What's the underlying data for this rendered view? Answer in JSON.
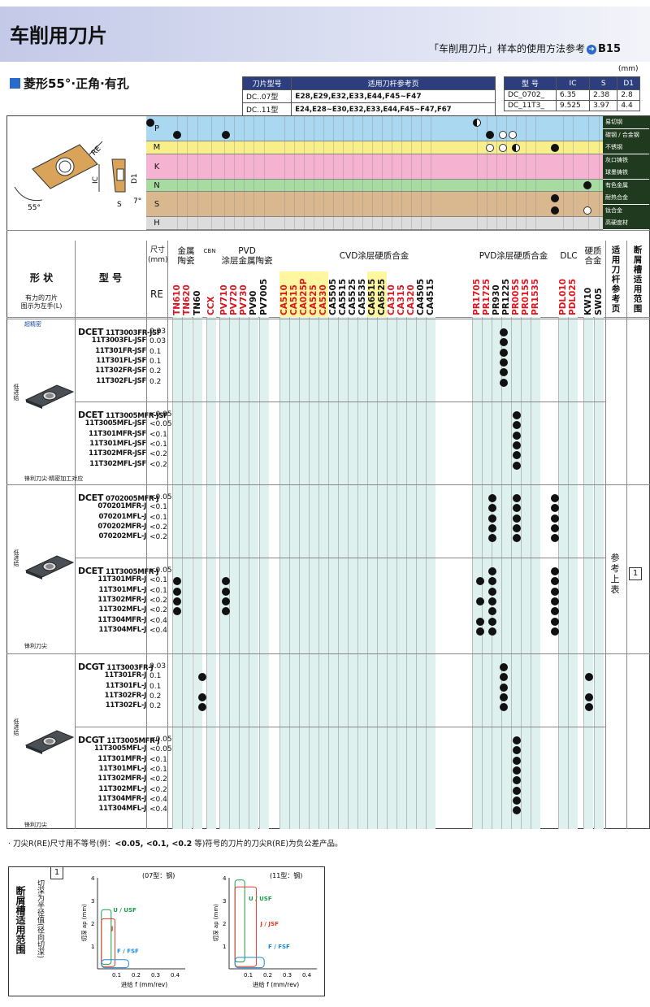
{
  "header": {
    "title": "车削用刀片",
    "right_text": "「车削用刀片」样本的使用方法参考",
    "page": "B15"
  },
  "subtitle": "菱形55°·正角·有孔",
  "holder_table": {
    "headers": [
      "刀片型号",
      "适用刀杆参考页"
    ],
    "rows": [
      [
        "DC..07型",
        "E28,E29,E32,E33,E44,F45~F47"
      ],
      [
        "DC..11型",
        "E24,E28~E30,E32,E33,E44,F45~F47,F67"
      ]
    ]
  },
  "dim_table": {
    "unit": "(mm)",
    "headers": [
      "型 号",
      "IC",
      "S",
      "D1"
    ],
    "rows": [
      [
        "DC_0702_",
        "6.35",
        "2.38",
        "2.8"
      ],
      [
        "DC_11T3_",
        "9.525",
        "3.97",
        "4.4"
      ]
    ]
  },
  "diagram": {
    "re": "RE",
    "ic": "IC",
    "s": "S",
    "d1": "D1",
    "a55": "55°",
    "a7": "7°"
  },
  "materials": [
    {
      "letter": "P",
      "tags": [
        "易切钢",
        "碳钢 / 合金钢"
      ],
      "color": "#a9d8f0"
    },
    {
      "letter": "M",
      "tags": [
        "不锈钢"
      ],
      "color": "#f8ee8a"
    },
    {
      "letter": "K",
      "tags": [
        "灰口铸铁",
        "球墨铸铁"
      ],
      "color": "#f5b3d1"
    },
    {
      "letter": "N",
      "tags": [
        "有色金属"
      ],
      "color": "#a8dba2"
    },
    {
      "letter": "S",
      "tags": [
        "耐热合金",
        "钛合金"
      ],
      "color": "#d9b88f"
    },
    {
      "letter": "H",
      "tags": [
        "高硬度材"
      ],
      "color": "#dcdcdc"
    }
  ],
  "categories": {
    "size": "尺寸\n(mm)",
    "cermet": "金属\n陶瓷",
    "cbn": "CBN",
    "pvd_cermet": "PVD\n涂层金属陶瓷",
    "cvd": "CVD涂层硬质合金",
    "pvd_carbide": "PVD涂层硬质合金",
    "dlc": "DLC",
    "carbide": "硬质\n合金",
    "holder_ref": "适\n用\n刀\n杆\n参\n考\n页",
    "chipbreaker_ref": "断\n屑\n槽\n适\n用\n范\n围",
    "shape": "形 状",
    "shape_note": "有力的刀片\n图示为左手(L)",
    "model": "型 号",
    "re": "RE"
  },
  "grades": [
    "TN610",
    "TN620",
    "TN60",
    "CCX",
    "PV710",
    "PV720",
    "PV730",
    "PV90",
    "PV7005",
    "CA510",
    "CA515",
    "CA025P",
    "CA525",
    "CA530",
    "CA5505",
    "CA5515",
    "CA5525",
    "CA5535",
    "CA6515",
    "CA6525",
    "CA310",
    "CA315",
    "CA320",
    "CA4505",
    "CA4515",
    "PR1705",
    "PR1725",
    "PR930",
    "PR1225",
    "PR005S",
    "PR015S",
    "PR1535",
    "PDL010",
    "PDL025",
    "KW10",
    "SW05"
  ],
  "grade_colors": [
    "red",
    "red",
    "black",
    "red",
    "red",
    "red",
    "red",
    "black",
    "black",
    "red",
    "red",
    "red",
    "red",
    "red",
    "black",
    "black",
    "black",
    "black",
    "black",
    "black",
    "red",
    "red",
    "red",
    "black",
    "black",
    "red",
    "red",
    "black",
    "black",
    "red",
    "red",
    "red",
    "red",
    "red",
    "black",
    "black"
  ],
  "grade_bg": [
    "",
    "",
    "",
    "",
    "",
    "",
    "",
    "",
    "",
    "#fff6a0",
    "#fff6a0",
    "#fff6a0",
    "#fff6a0",
    "#fff6a0",
    "",
    "",
    "",
    "",
    "#fff6a0",
    "#fff6a0",
    "",
    "",
    "",
    "",
    "",
    "",
    "",
    "",
    "",
    "",
    "",
    "",
    "",
    "",
    "",
    ""
  ],
  "groups": [
    {
      "section_label": "超精密",
      "speed": "低进给",
      "shape_caption": "锋利刀尖·精密加工对应",
      "prefix": "DCET",
      "rows": [
        [
          "11T3003FR-JSF",
          "0.03"
        ],
        [
          "11T3003FL-JSF",
          "0.03"
        ],
        [
          "11T301FR-JSF",
          "0.1"
        ],
        [
          "11T301FL-JSF",
          "0.1"
        ],
        [
          "11T302FR-JSF",
          "0.2"
        ],
        [
          "11T302FL-JSF",
          "0.2"
        ]
      ]
    },
    {
      "section_label": "",
      "speed": "",
      "shape_caption": "",
      "prefix": "DCET",
      "rows": [
        [
          "11T3005MFR-JSF",
          "<0.05"
        ],
        [
          "11T3005MFL-JSF",
          "<0.05"
        ],
        [
          "11T301MFR-JSF",
          "<0.1"
        ],
        [
          "11T301MFL-JSF",
          "<0.1"
        ],
        [
          "11T302MFR-JSF",
          "<0.2"
        ],
        [
          "11T302MFL-JSF",
          "<0.2"
        ]
      ]
    },
    {
      "section_label": "",
      "speed": "低进给",
      "shape_caption": "锋利刀尖",
      "prefix": "DCET",
      "rows": [
        [
          "0702005MFR-J",
          "<0.05"
        ],
        [
          "070201MFR-J",
          "<0.1"
        ],
        [
          "070201MFL-J",
          "<0.1"
        ],
        [
          "070202MFR-J",
          "<0.2"
        ],
        [
          "070202MFL-J",
          "<0.2"
        ]
      ]
    },
    {
      "section_label": "",
      "speed": "",
      "shape_caption": "",
      "prefix": "DCET",
      "rows": [
        [
          "11T3005MFR-J",
          "<0.05"
        ],
        [
          "11T301MFR-J",
          "<0.1"
        ],
        [
          "11T301MFL-J",
          "<0.1"
        ],
        [
          "11T302MFR-J",
          "<0.2"
        ],
        [
          "11T302MFL-J",
          "<0.2"
        ],
        [
          "11T304MFR-J",
          "<0.4"
        ],
        [
          "11T304MFL-J",
          "<0.4"
        ]
      ]
    },
    {
      "section_label": "",
      "speed": "低进给",
      "shape_caption": "",
      "prefix": "DCGT",
      "rows": [
        [
          "11T3003FR-J",
          "0.03"
        ],
        [
          "11T301FR-J",
          "0.1"
        ],
        [
          "11T301FL-J",
          "0.1"
        ],
        [
          "11T302FR-J",
          "0.2"
        ],
        [
          "11T302FL-J",
          "0.2"
        ]
      ]
    },
    {
      "section_label": "",
      "speed": "",
      "shape_caption": "锋利刀尖",
      "prefix": "DCGT",
      "rows": [
        [
          "11T3005MFR-J",
          "<0.05"
        ],
        [
          "11T3005MFL-J",
          "<0.05"
        ],
        [
          "11T301MFR-J",
          "<0.1"
        ],
        [
          "11T301MFL-J",
          "<0.1"
        ],
        [
          "11T302MFR-J",
          "<0.2"
        ],
        [
          "11T302MFL-J",
          "<0.2"
        ],
        [
          "11T304MFR-J",
          "<0.4"
        ],
        [
          "11T304MFL-J",
          "<0.4"
        ]
      ]
    }
  ],
  "holder_ref_text": "参\n考\n上\n表",
  "chip_ref": "1",
  "footnote_parts": [
    "· 刀尖R(RE)尺寸用不等号(例：",
    "<0.05, <0.1, <0.2",
    "等)符号的刀片的刀尖R(RE)为负公差产品。"
  ],
  "footer": {
    "label": "断屑槽适用范围",
    "side": "切深为半径值(径向切深)",
    "box_no": "1",
    "charts": [
      {
        "caption": "(07型：钢)",
        "xlabel": "进给 f (mm/rev)",
        "ylabel": "切深 ap (mm)",
        "xticks": [
          "0.1",
          "0.2",
          "0.3",
          "0.4"
        ],
        "yticks": [
          "1",
          "2",
          "3",
          "4"
        ],
        "regions": [
          "U / USF",
          "J",
          "F / FSF"
        ]
      },
      {
        "caption": "(11型：钢)",
        "xlabel": "进给 f (mm/rev)",
        "ylabel": "切深 ap (mm)",
        "xticks": [
          "0.1",
          "0.2",
          "0.3",
          "0.4"
        ],
        "yticks": [
          "1",
          "2",
          "3",
          "4"
        ],
        "regions": [
          "U / USF",
          "J / JSF",
          "F / FSF"
        ]
      }
    ]
  }
}
